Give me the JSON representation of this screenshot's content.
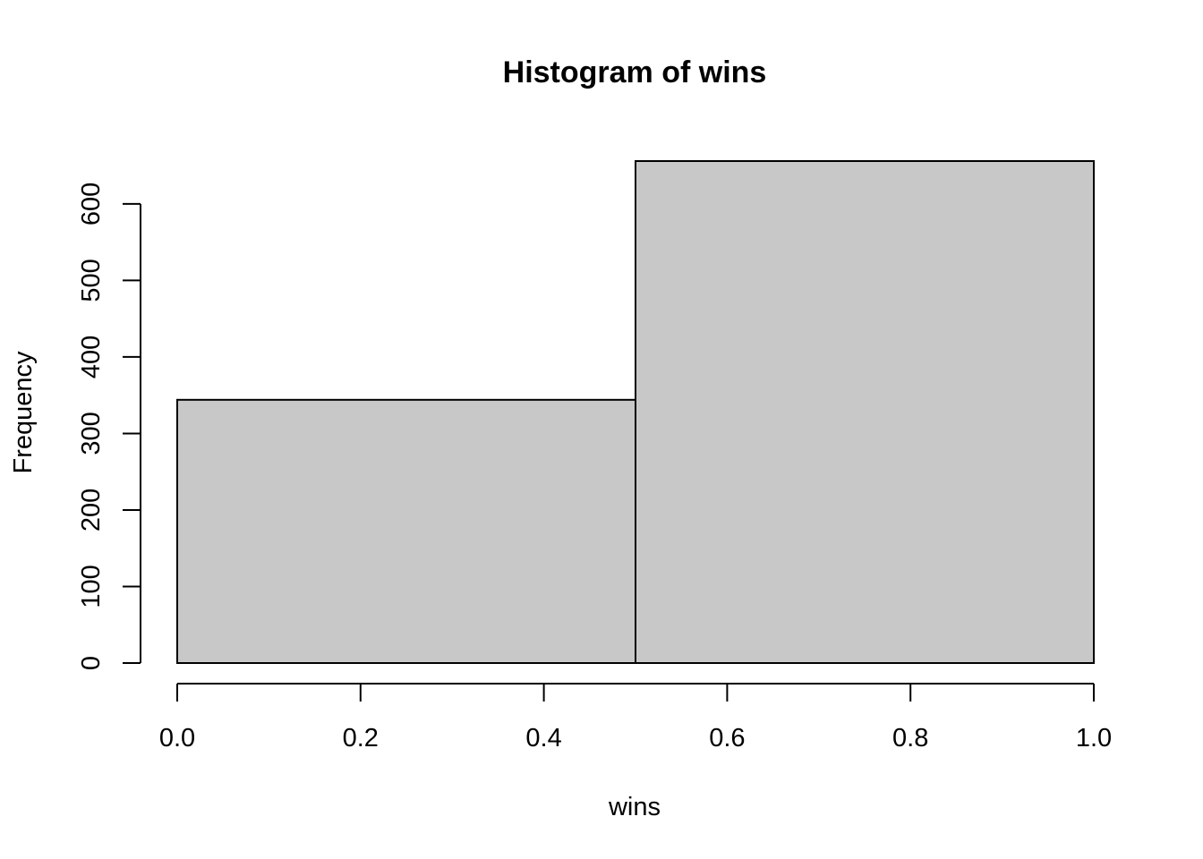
{
  "chart_data": {
    "type": "bar",
    "title": "Histogram of wins",
    "xlabel": "wins",
    "ylabel": "Frequency",
    "bins": [
      {
        "from": 0.0,
        "to": 0.5,
        "count": 344
      },
      {
        "from": 0.5,
        "to": 1.0,
        "count": 656
      }
    ],
    "xlim": [
      0.0,
      1.0
    ],
    "ylim": [
      0,
      656
    ],
    "x_ticks": [
      0.0,
      0.2,
      0.4,
      0.6,
      0.8,
      1.0
    ],
    "x_tick_labels": [
      "0.0",
      "0.2",
      "0.4",
      "0.6",
      "0.8",
      "1.0"
    ],
    "y_ticks": [
      0,
      100,
      200,
      300,
      400,
      500,
      600
    ],
    "y_tick_labels": [
      "0",
      "100",
      "200",
      "300",
      "400",
      "500",
      "600"
    ],
    "bar_fill": "#c8c8c8",
    "grid": false,
    "legend": "none"
  }
}
